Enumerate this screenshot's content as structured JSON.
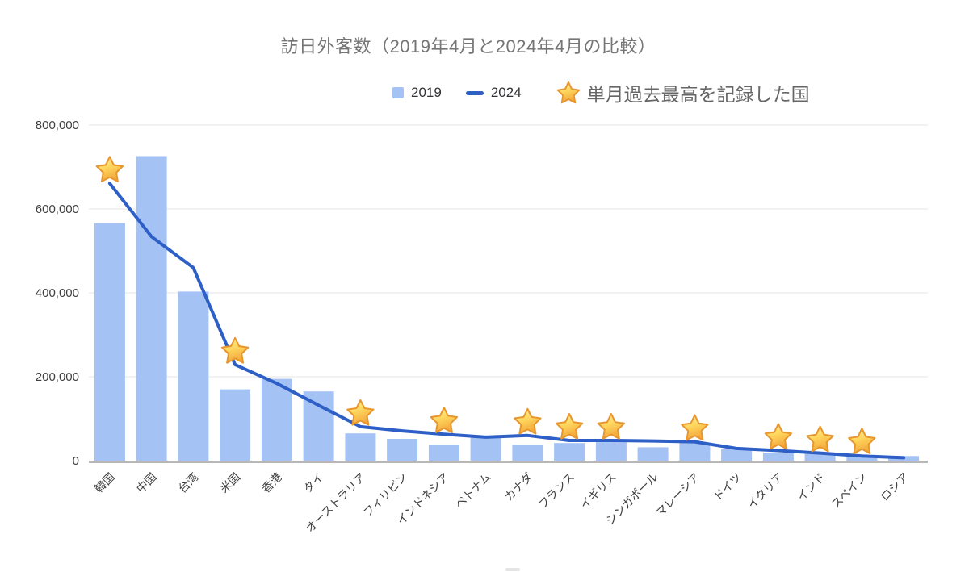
{
  "title": "訪日外客数（2019年4月と2024年4月の比較）",
  "legend": {
    "series_2019": "2019",
    "series_2024": "2024",
    "star_label": "単月過去最高を記録した国"
  },
  "colors": {
    "bar_2019": "#a4c2f4",
    "line_2024": "#2d5fc6",
    "title": "#757575",
    "legend_text": "#313235",
    "star_label_text": "#666666",
    "axis_text": "#3f3f3f",
    "gridline": "#e6e6e6",
    "axis_line": "#b7b7b7",
    "star_light": "#ffefa6",
    "star_mid": "#ffd75e",
    "star_dark": "#f3a83b",
    "star_stroke": "#e8962e"
  },
  "chart_data": {
    "type": "combo (bar + line)",
    "title": "訪日外客数（2019年4月と2024年4月の比較）",
    "categories": [
      "韓国",
      "中国",
      "台湾",
      "米国",
      "香港",
      "タイ",
      "オーストラリア",
      "フィリピン",
      "インドネシア",
      "ベトナム",
      "カナダ",
      "フランス",
      "イギリス",
      "シンガポール",
      "マレーシア",
      "ドイツ",
      "イタリア",
      "インド",
      "スペイン",
      "ロシア"
    ],
    "series": [
      {
        "name": "2019",
        "type": "bar",
        "values": [
          566000,
          726000,
          403000,
          170000,
          195000,
          165000,
          65000,
          52000,
          38000,
          56000,
          38000,
          42000,
          44000,
          32000,
          43000,
          27000,
          19000,
          16000,
          13000,
          11000
        ]
      },
      {
        "name": "2024",
        "type": "line",
        "values": [
          661000,
          534000,
          460000,
          229000,
          184000,
          132000,
          81000,
          71000,
          63000,
          56000,
          60000,
          48000,
          48000,
          47000,
          45000,
          29000,
          24000,
          18000,
          11000,
          7000
        ]
      }
    ],
    "starred_categories": [
      "韓国",
      "米国",
      "オーストラリア",
      "インドネシア",
      "カナダ",
      "フランス",
      "イギリス",
      "マレーシア",
      "イタリア",
      "インド",
      "スペイン"
    ],
    "star_meaning": "単月過去最高を記録した国",
    "xlabel": "",
    "ylabel": "",
    "ylim": [
      0,
      800000
    ],
    "y_ticks": [
      0,
      200000,
      400000,
      600000,
      800000
    ],
    "grid": true,
    "legend_position": "top",
    "x_tick_rotation": -45
  }
}
